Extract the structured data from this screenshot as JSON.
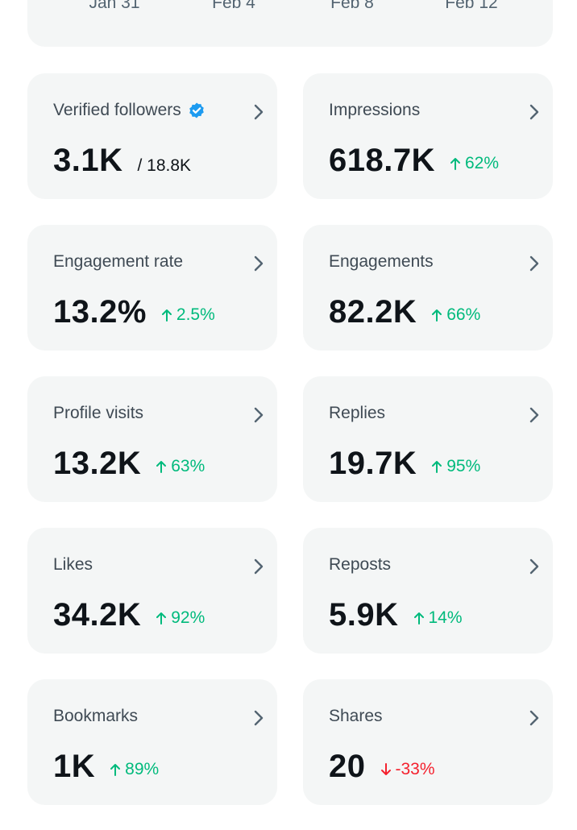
{
  "axis": {
    "ticks": [
      "Jan 31",
      "Feb 4",
      "Feb 8",
      "Feb 12"
    ]
  },
  "colors": {
    "card_bg": "#f4f6f6",
    "positive": "#00ba7c",
    "negative": "#f4212e",
    "verified": "#1d9bf0"
  },
  "cards": [
    {
      "title": "Verified followers",
      "value": "3.1K",
      "sub": "/ 18.8K",
      "verified": true
    },
    {
      "title": "Impressions",
      "value": "618.7K",
      "delta": "62%",
      "direction": "up"
    },
    {
      "title": "Engagement rate",
      "value": "13.2%",
      "delta": "2.5%",
      "direction": "up"
    },
    {
      "title": "Engagements",
      "value": "82.2K",
      "delta": "66%",
      "direction": "up"
    },
    {
      "title": "Profile visits",
      "value": "13.2K",
      "delta": "63%",
      "direction": "up"
    },
    {
      "title": "Replies",
      "value": "19.7K",
      "delta": "95%",
      "direction": "up"
    },
    {
      "title": "Likes",
      "value": "34.2K",
      "delta": "92%",
      "direction": "up"
    },
    {
      "title": "Reposts",
      "value": "5.9K",
      "delta": "14%",
      "direction": "up"
    },
    {
      "title": "Bookmarks",
      "value": "1K",
      "delta": "89%",
      "direction": "up"
    },
    {
      "title": "Shares",
      "value": "20",
      "delta": "-33%",
      "direction": "down"
    }
  ]
}
